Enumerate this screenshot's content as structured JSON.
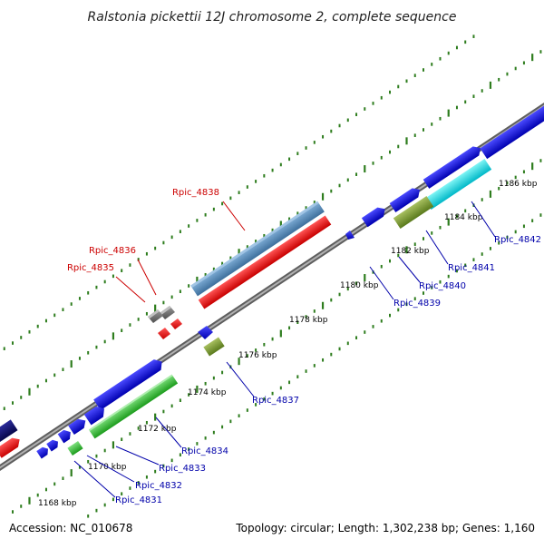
{
  "title": "Ralstonia pickettii 12J chromosome 2, complete sequence",
  "footer": {
    "accession": "Accession: NC_010678",
    "summary": "Topology: circular; Length: 1,302,238 bp; Genes: 1,160"
  },
  "colors": {
    "backbone": "#8a8a8a",
    "tick": "#2e7d1e",
    "label_highlight": "#cc0000",
    "label_normal": "#0000aa"
  },
  "ticks": [
    {
      "label": "1168 kbp"
    },
    {
      "label": "1170 kbp"
    },
    {
      "label": "1172 kbp"
    },
    {
      "label": "1174 kbp"
    },
    {
      "label": "1176 kbp"
    },
    {
      "label": "1178 kbp"
    },
    {
      "label": "1180 kbp"
    },
    {
      "label": "1182 kbp"
    },
    {
      "label": "1184 kbp"
    },
    {
      "label": "1186 kbp"
    }
  ],
  "gene_labels": [
    {
      "name": "Rpic_4838",
      "highlight": true
    },
    {
      "name": "Rpic_4836",
      "highlight": true
    },
    {
      "name": "Rpic_4835",
      "highlight": true
    },
    {
      "name": "Rpic_4842",
      "highlight": false
    },
    {
      "name": "Rpic_4841",
      "highlight": false
    },
    {
      "name": "Rpic_4840",
      "highlight": false
    },
    {
      "name": "Rpic_4839",
      "highlight": false
    },
    {
      "name": "Rpic_4837",
      "highlight": false
    },
    {
      "name": "Rpic_4834",
      "highlight": false
    },
    {
      "name": "Rpic_4833",
      "highlight": false
    },
    {
      "name": "Rpic_4832",
      "highlight": false
    },
    {
      "name": "Rpic_4831",
      "highlight": false
    }
  ]
}
